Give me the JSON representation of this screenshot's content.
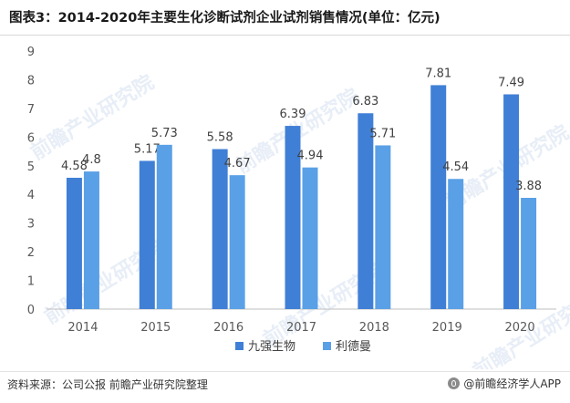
{
  "title": "图表3：2014-2020年主要生化诊断试剂企业试剂销售情况(单位：亿元)",
  "source": "资料来源：公司公报 前瞻产业研究院整理",
  "brand": "@前瞻经济学人APP",
  "watermark": "前瞻产业研究院",
  "colors": {
    "series1": "#3f7fd6",
    "series2": "#5aa0e6",
    "axis": "#bfbfbf",
    "grid": "#ececec"
  },
  "chart_data": {
    "type": "bar",
    "title": "图表3：2014-2020年主要生化诊断试剂企业试剂销售情况(单位：亿元)",
    "xlabel": "",
    "ylabel": "",
    "categories": [
      "2014",
      "2015",
      "2016",
      "2017",
      "2018",
      "2019",
      "2020"
    ],
    "series": [
      {
        "name": "九强生物",
        "values": [
          4.58,
          5.17,
          5.58,
          6.39,
          6.83,
          7.81,
          7.49
        ]
      },
      {
        "name": "利德曼",
        "values": [
          4.8,
          5.73,
          4.67,
          4.94,
          5.71,
          4.54,
          3.88
        ]
      }
    ],
    "ylim": [
      0,
      9
    ],
    "yticks": [
      0,
      1,
      2,
      3,
      4,
      5,
      6,
      7,
      8,
      9
    ],
    "grid": false,
    "legend": "bottom-center",
    "data_labels": true
  }
}
